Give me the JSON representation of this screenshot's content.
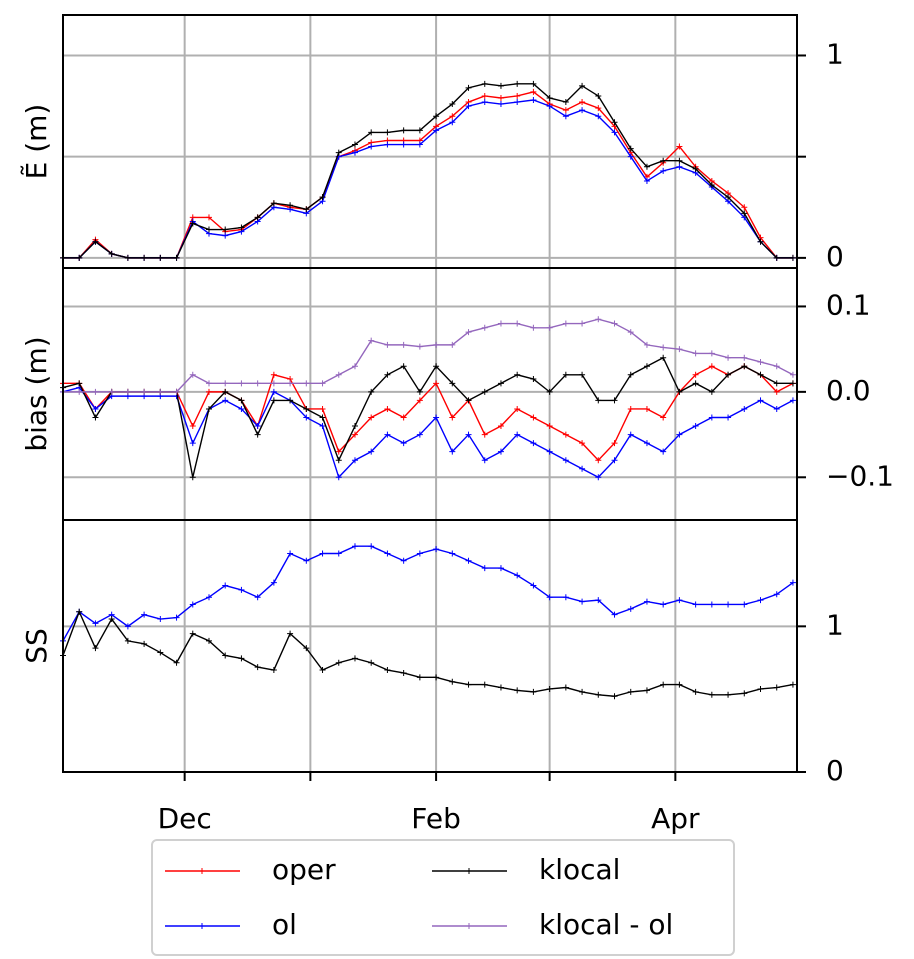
{
  "chart_data": [
    {
      "type": "line",
      "ylabel": "Ẽ (m)",
      "grid": true,
      "x": [
        0,
        4,
        8,
        12,
        16,
        20,
        24,
        28,
        32,
        36,
        40,
        44,
        48,
        52,
        56,
        60,
        64,
        68,
        72,
        76,
        80,
        84,
        88,
        92,
        96,
        100,
        104,
        108,
        112,
        116,
        120,
        124,
        128,
        132,
        136,
        140,
        144,
        148,
        152,
        156,
        160,
        164,
        168,
        172,
        176,
        180
      ],
      "xlim": [
        0,
        181
      ],
      "xticks": [
        30,
        61,
        92,
        120,
        151
      ],
      "ylim": [
        -0.05,
        1.2
      ],
      "yticks": [
        0,
        {
          "value": 0.5,
          "label": null
        },
        1
      ],
      "series": [
        {
          "name": "oper",
          "color": "#ff0000",
          "values": [
            0,
            0,
            0.09,
            0.02,
            0,
            0,
            0,
            0,
            0.2,
            0.2,
            0.13,
            0.14,
            0.2,
            0.27,
            0.25,
            0.24,
            0.3,
            0.5,
            0.53,
            0.57,
            0.58,
            0.58,
            0.58,
            0.65,
            0.7,
            0.77,
            0.8,
            0.79,
            0.8,
            0.82,
            0.76,
            0.73,
            0.77,
            0.74,
            0.65,
            0.52,
            0.4,
            0.47,
            0.55,
            0.45,
            0.38,
            0.32,
            0.25,
            0.1,
            0,
            0
          ]
        },
        {
          "name": "ol",
          "color": "#0000ff",
          "values": [
            0,
            0,
            0.08,
            0.02,
            0,
            0,
            0,
            0,
            0.18,
            0.12,
            0.11,
            0.13,
            0.18,
            0.25,
            0.24,
            0.22,
            0.28,
            0.5,
            0.52,
            0.55,
            0.56,
            0.56,
            0.56,
            0.63,
            0.67,
            0.75,
            0.77,
            0.76,
            0.77,
            0.78,
            0.75,
            0.7,
            0.73,
            0.7,
            0.62,
            0.5,
            0.38,
            0.43,
            0.45,
            0.42,
            0.35,
            0.28,
            0.2,
            0.08,
            0,
            0
          ]
        },
        {
          "name": "klocal",
          "color": "#000000",
          "values": [
            0,
            0,
            0.08,
            0.02,
            0,
            0,
            0,
            0,
            0.17,
            0.14,
            0.14,
            0.15,
            0.2,
            0.27,
            0.26,
            0.24,
            0.3,
            0.52,
            0.56,
            0.62,
            0.62,
            0.63,
            0.63,
            0.7,
            0.76,
            0.84,
            0.86,
            0.85,
            0.86,
            0.86,
            0.79,
            0.77,
            0.85,
            0.8,
            0.67,
            0.54,
            0.45,
            0.48,
            0.48,
            0.44,
            0.36,
            0.3,
            0.22,
            0.08,
            0,
            0
          ]
        }
      ]
    },
    {
      "type": "line",
      "ylabel": "bias (m)",
      "grid": true,
      "legend": "below",
      "x": [
        0,
        4,
        8,
        12,
        16,
        20,
        24,
        28,
        32,
        36,
        40,
        44,
        48,
        52,
        56,
        60,
        64,
        68,
        72,
        76,
        80,
        84,
        88,
        92,
        96,
        100,
        104,
        108,
        112,
        116,
        120,
        124,
        128,
        132,
        136,
        140,
        144,
        148,
        152,
        156,
        160,
        164,
        168,
        172,
        176,
        180
      ],
      "xlim": [
        0,
        181
      ],
      "xticks": [
        30,
        61,
        92,
        120,
        151
      ],
      "ylim": [
        -0.15,
        0.145
      ],
      "yticks": [
        {
          "value": -0.1,
          "label": "−0.1"
        },
        {
          "value": 0,
          "label": "0.0"
        },
        0.1
      ],
      "series": [
        {
          "name": "oper",
          "color": "#ff0000",
          "values": [
            0.01,
            0.01,
            -0.02,
            0,
            0,
            0,
            0,
            0,
            -0.04,
            0.0,
            0.0,
            -0.01,
            -0.04,
            0.02,
            0.015,
            -0.02,
            -0.02,
            -0.07,
            -0.05,
            -0.03,
            -0.02,
            -0.03,
            -0.01,
            0.01,
            -0.03,
            -0.01,
            -0.05,
            -0.04,
            -0.02,
            -0.03,
            -0.04,
            -0.05,
            -0.06,
            -0.08,
            -0.06,
            -0.02,
            -0.02,
            -0.03,
            0.0,
            0.02,
            0.03,
            0.02,
            0.03,
            0.02,
            0.0,
            0.01
          ]
        },
        {
          "name": "ol",
          "color": "#0000ff",
          "values": [
            0,
            0.005,
            -0.02,
            -0.005,
            -0.005,
            -0.005,
            -0.005,
            -0.005,
            -0.06,
            -0.02,
            -0.01,
            -0.02,
            -0.04,
            0.0,
            -0.01,
            -0.03,
            -0.04,
            -0.1,
            -0.08,
            -0.07,
            -0.05,
            -0.06,
            -0.05,
            -0.03,
            -0.07,
            -0.05,
            -0.08,
            -0.07,
            -0.05,
            -0.06,
            -0.07,
            -0.08,
            -0.09,
            -0.1,
            -0.08,
            -0.05,
            -0.06,
            -0.07,
            -0.05,
            -0.04,
            -0.03,
            -0.03,
            -0.02,
            -0.01,
            -0.02,
            -0.01
          ]
        },
        {
          "name": "klocal",
          "color": "#000000",
          "values": [
            0.005,
            0.01,
            -0.03,
            0,
            0,
            0,
            0,
            0,
            -0.1,
            -0.02,
            0,
            -0.01,
            -0.05,
            -0.01,
            -0.01,
            -0.02,
            -0.03,
            -0.08,
            -0.04,
            0,
            0.02,
            0.03,
            0.0,
            0.03,
            0.01,
            -0.01,
            0.0,
            0.01,
            0.02,
            0.015,
            0.0,
            0.02,
            0.02,
            -0.01,
            -0.01,
            0.02,
            0.03,
            0.04,
            0.0,
            0.01,
            0.0,
            0.02,
            0.03,
            0.02,
            0.01,
            0.01
          ]
        },
        {
          "name": "klocal - ol",
          "color": "#9467bd",
          "values": [
            0,
            0,
            0,
            0,
            0,
            0,
            0,
            0,
            0.02,
            0.01,
            0.01,
            0.01,
            0.01,
            0.01,
            0.01,
            0.01,
            0.01,
            0.02,
            0.03,
            0.06,
            0.055,
            0.055,
            0.053,
            0.055,
            0.055,
            0.07,
            0.075,
            0.08,
            0.08,
            0.075,
            0.075,
            0.08,
            0.08,
            0.085,
            0.08,
            0.07,
            0.055,
            0.052,
            0.05,
            0.045,
            0.045,
            0.04,
            0.04,
            0.035,
            0.03,
            0.02
          ]
        }
      ]
    },
    {
      "type": "line",
      "ylabel": "SS",
      "grid": true,
      "x": [
        0,
        4,
        8,
        12,
        16,
        20,
        24,
        28,
        32,
        36,
        40,
        44,
        48,
        52,
        56,
        60,
        64,
        68,
        72,
        76,
        80,
        84,
        88,
        92,
        96,
        100,
        104,
        108,
        112,
        116,
        120,
        124,
        128,
        132,
        136,
        140,
        144,
        148,
        152,
        156,
        160,
        164,
        168,
        172,
        176,
        180
      ],
      "xlim": [
        0,
        181
      ],
      "xticks": [
        {
          "value": 30,
          "label": "Dec"
        },
        {
          "value": 61,
          "label": null
        },
        {
          "value": 92,
          "label": "Feb"
        },
        {
          "value": 120,
          "label": null
        },
        {
          "value": 151,
          "label": "Apr"
        }
      ],
      "ylim": [
        0,
        1.73
      ],
      "yticks": [
        0,
        1
      ],
      "series": [
        {
          "name": "ol",
          "color": "#0000ff",
          "values": [
            0.9,
            1.1,
            1.02,
            1.08,
            1.0,
            1.08,
            1.05,
            1.06,
            1.15,
            1.2,
            1.28,
            1.25,
            1.2,
            1.3,
            1.5,
            1.45,
            1.5,
            1.5,
            1.55,
            1.55,
            1.5,
            1.45,
            1.5,
            1.53,
            1.5,
            1.45,
            1.4,
            1.4,
            1.35,
            1.28,
            1.2,
            1.2,
            1.17,
            1.18,
            1.08,
            1.12,
            1.17,
            1.15,
            1.18,
            1.15,
            1.15,
            1.15,
            1.15,
            1.18,
            1.22,
            1.3
          ]
        },
        {
          "name": "klocal",
          "color": "#000000",
          "values": [
            0.8,
            1.1,
            0.85,
            1.05,
            0.9,
            0.88,
            0.82,
            0.75,
            0.95,
            0.9,
            0.8,
            0.78,
            0.72,
            0.7,
            0.95,
            0.85,
            0.7,
            0.75,
            0.78,
            0.75,
            0.7,
            0.68,
            0.65,
            0.65,
            0.62,
            0.6,
            0.6,
            0.58,
            0.56,
            0.55,
            0.57,
            0.58,
            0.55,
            0.53,
            0.52,
            0.55,
            0.56,
            0.6,
            0.6,
            0.55,
            0.53,
            0.53,
            0.54,
            0.57,
            0.58,
            0.6
          ]
        }
      ]
    }
  ]
}
